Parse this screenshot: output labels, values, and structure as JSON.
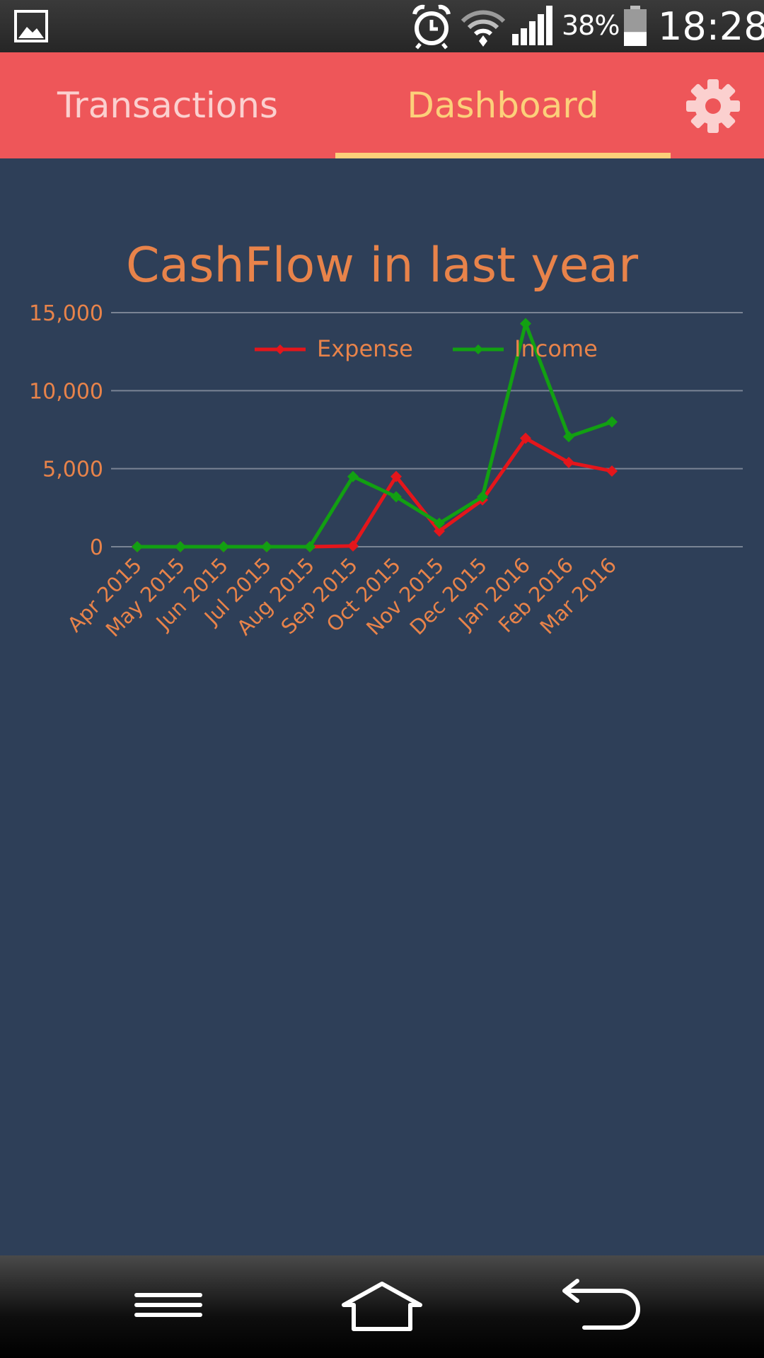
{
  "status_bar": {
    "battery_percent": "38%",
    "time": "18:28",
    "battery_level": 0.38,
    "icons": [
      "gallery-icon",
      "alarm-icon",
      "wifi-icon",
      "signal-icon",
      "battery-icon"
    ]
  },
  "app_bar": {
    "tabs": [
      {
        "label": "Transactions",
        "selected": false
      },
      {
        "label": "Dashboard",
        "selected": true
      }
    ],
    "settings_icon": "gear-icon",
    "colors": {
      "background": "#ee5659",
      "active": "#fcd07a",
      "inactive": "#fbd0cf"
    }
  },
  "chart_data": {
    "type": "line",
    "title": "CashFlow in last year",
    "categories": [
      "Apr 2015",
      "May 2015",
      "Jun 2015",
      "Jul 2015",
      "Aug 2015",
      "Sep 2015",
      "Oct 2015",
      "Nov 2015",
      "Dec 2015",
      "Jan 2016",
      "Feb 2016",
      "Mar 2016"
    ],
    "series": [
      {
        "name": "Expense",
        "color": "#e4161b",
        "values": [
          0,
          0,
          0,
          0,
          0,
          50,
          4500,
          1000,
          3000,
          6950,
          5400,
          4850
        ]
      },
      {
        "name": "Income",
        "color": "#12a012",
        "values": [
          0,
          0,
          0,
          0,
          0,
          4500,
          3200,
          1500,
          3200,
          14300,
          7050,
          8000
        ]
      }
    ],
    "yticks": [
      "0",
      "5,000",
      "10,000",
      "15,000"
    ],
    "ytick_values": [
      0,
      5000,
      10000,
      15000
    ],
    "ylim": [
      0,
      15000
    ],
    "grid": true,
    "legend": "top-center",
    "text_color": "#e8834a",
    "background": "#2e3f58"
  },
  "nav_bar": {
    "icons": [
      "menu-icon",
      "home-icon",
      "back-icon"
    ]
  }
}
